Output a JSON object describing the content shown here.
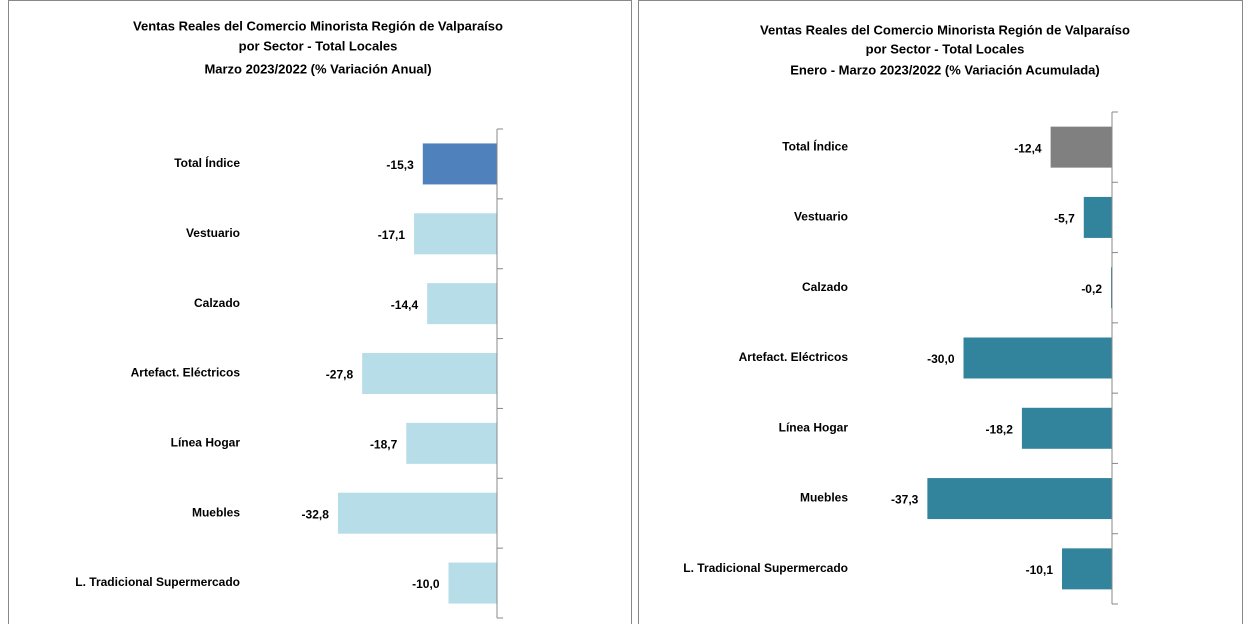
{
  "chart_data": [
    {
      "type": "bar",
      "orientation": "horizontal",
      "title": [
        "Ventas Reales del Comercio Minorista Región de Valparaíso",
        "por Sector - Total Locales",
        "Marzo 2023/2022 (% Variación Anual)"
      ],
      "categories": [
        "Total Índice",
        "Vestuario",
        "Calzado",
        "Artefact. Eléctricos",
        "Línea Hogar",
        "Muebles",
        "L. Tradicional Supermercado"
      ],
      "values": [
        -15.3,
        -17.1,
        -14.4,
        -27.8,
        -18.7,
        -32.8,
        -10.0
      ],
      "value_labels": [
        "-15,3",
        "-17,1",
        "-14,4",
        "-27,8",
        "-18,7",
        "-32,8",
        "-10,0"
      ],
      "colors": [
        "#4f81bd",
        "#b7dde8",
        "#b7dde8",
        "#b7dde8",
        "#b7dde8",
        "#b7dde8",
        "#b7dde8"
      ],
      "xlim": [
        -40,
        0
      ]
    },
    {
      "type": "bar",
      "orientation": "horizontal",
      "title": [
        "Ventas Reales del Comercio Minorista Región de Valparaíso",
        "por Sector  - Total Locales",
        "Enero - Marzo 2023/2022 (% Variación Acumulada)"
      ],
      "categories": [
        "Total Índice",
        "Vestuario",
        "Calzado",
        "Artefact. Eléctricos",
        "Línea Hogar",
        "Muebles",
        "L. Tradicional Supermercado"
      ],
      "values": [
        -12.4,
        -5.7,
        -0.2,
        -30.0,
        -18.2,
        -37.3,
        -10.1
      ],
      "value_labels": [
        "-12,4",
        "-5,7",
        "-0,2",
        "-30,0",
        "-18,2",
        "-37,3",
        "-10,1"
      ],
      "colors": [
        "#808080",
        "#31849b",
        "#31849b",
        "#31849b",
        "#31849b",
        "#31849b",
        "#31849b"
      ],
      "xlim": [
        -40,
        0
      ]
    }
  ]
}
